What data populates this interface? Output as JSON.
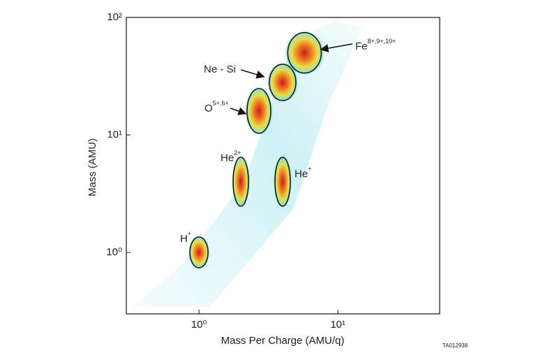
{
  "chart_data": {
    "type": "scatter",
    "x_label": "Mass Per Charge (AMU/q)",
    "y_label": "Mass (AMU)",
    "figure_id": "TA012938",
    "log_x": true,
    "log_y": true,
    "xlim": [
      0.3,
      54
    ],
    "ylim": [
      0.3,
      100
    ],
    "xticks": [
      {
        "value": 1,
        "label": "10⁰"
      },
      {
        "value": 10,
        "label": "10¹"
      }
    ],
    "yticks": [
      {
        "value": 1,
        "label": "10⁰"
      },
      {
        "value": 10,
        "label": "10¹"
      },
      {
        "value": 100,
        "label": "10²"
      }
    ],
    "clusters": [
      {
        "label": "H",
        "charge": "+",
        "x": 1,
        "y": 1
      },
      {
        "label": "He",
        "charge": "2+",
        "x": 2,
        "y": 4
      },
      {
        "label": "He",
        "charge": "+",
        "x": 4,
        "y": 4
      },
      {
        "label": "O",
        "charge": "5+,6+",
        "x": 2.7,
        "y": 16
      },
      {
        "label": "Ne - Si",
        "x": 4,
        "y": 28
      },
      {
        "label": "Fe",
        "charge": "8+,9+,10+",
        "x": 5.75,
        "y": 50
      }
    ]
  }
}
